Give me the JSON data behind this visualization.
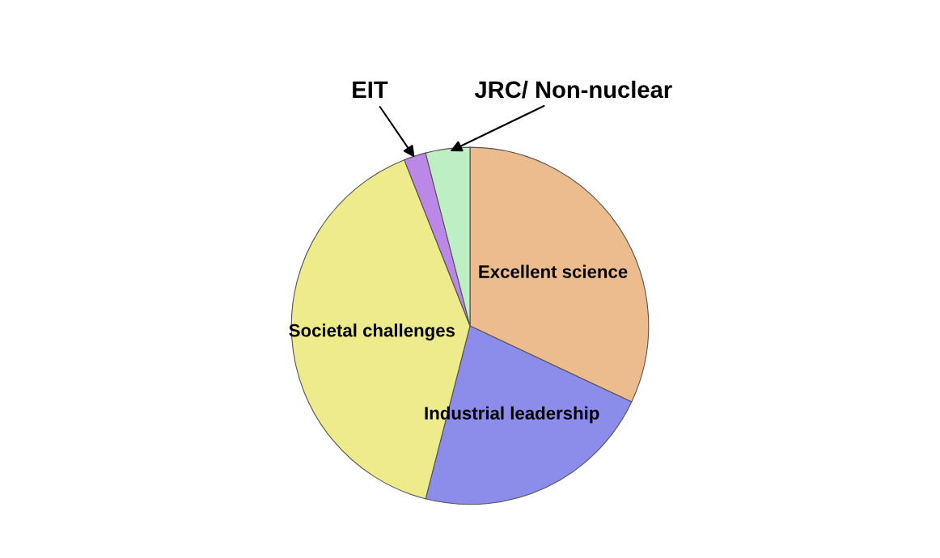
{
  "chart_data": {
    "type": "pie",
    "categories": [
      "Excellent science",
      "Industrial leadership",
      "Societal challenges",
      "EIT",
      "JRC/ Non-nuclear"
    ],
    "values": [
      32,
      22,
      40,
      2,
      4
    ],
    "colors": [
      "#ecbc8e",
      "#8c8cea",
      "#eeeb8c",
      "#bb88e8",
      "#bdeec4"
    ]
  }
}
